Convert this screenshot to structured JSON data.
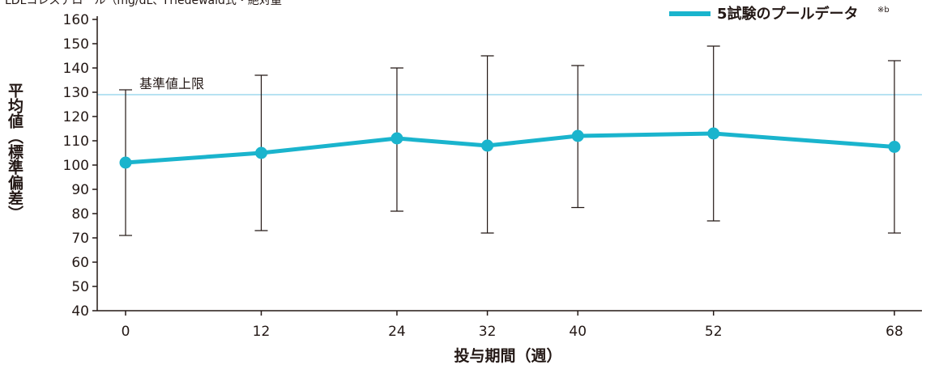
{
  "chart_data": {
    "type": "line",
    "top_caption": "LDLコレステロール（mg/dL、Friedewald式・絶対量",
    "legend": {
      "label": "5試験のプールデータ",
      "note": "※b",
      "position": "top-right"
    },
    "ylabel": "平均値（標準偏差）",
    "xlabel": "投与期間（週）",
    "ylim": [
      40,
      160
    ],
    "y_ticks": [
      40,
      50,
      60,
      70,
      80,
      90,
      100,
      110,
      120,
      130,
      140,
      150,
      160
    ],
    "x_ticks": [
      0,
      12,
      24,
      32,
      40,
      52,
      68
    ],
    "x_tick_labels": [
      "0",
      "12",
      "24",
      "32",
      "40",
      "52",
      "68"
    ],
    "reference_line": {
      "label": "基準値上限",
      "value": 129
    },
    "series": [
      {
        "name": "5試験のプールデータ",
        "x": [
          0,
          12,
          24,
          32,
          40,
          52,
          68
        ],
        "y": [
          101,
          105,
          111,
          108,
          112,
          113,
          107.5
        ],
        "error_low": [
          71,
          73,
          81,
          72,
          82.5,
          77,
          72
        ],
        "error_high": [
          131,
          137,
          140,
          145,
          141,
          149,
          143
        ]
      }
    ],
    "colors": {
      "series": "#1ab4cd",
      "reference": "#9fd8ee",
      "axis": "#231815",
      "error_bar": "#231815"
    }
  }
}
